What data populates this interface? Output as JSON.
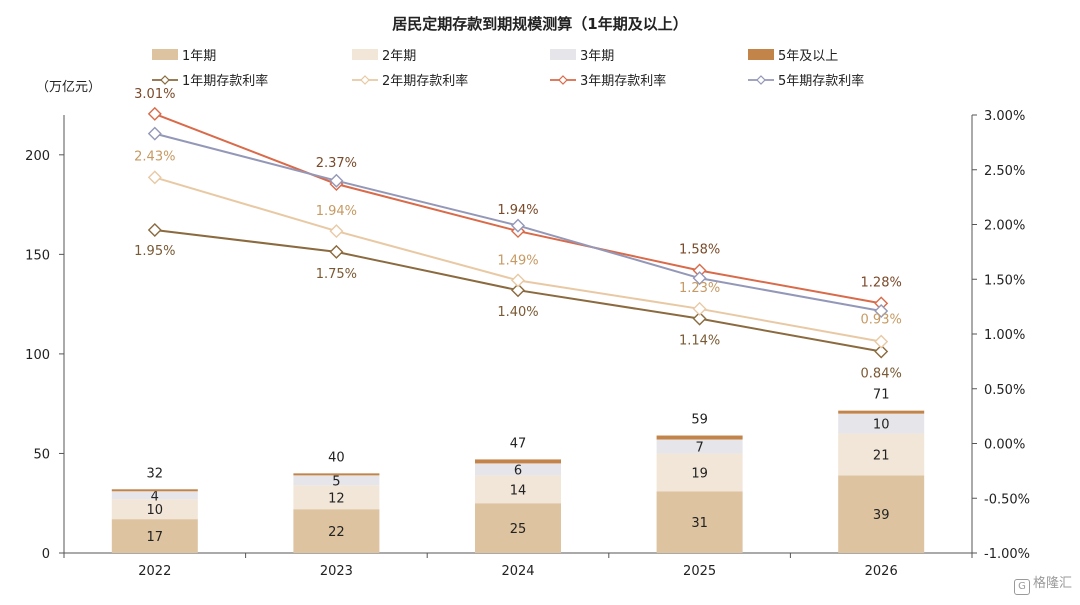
{
  "chart_data": {
    "type": "bar",
    "title": "居民定期存款到期规模测算（1年期及以上）",
    "y_unit_label": "（万亿元）",
    "categories": [
      "2022",
      "2023",
      "2024",
      "2025",
      "2026"
    ],
    "left_axis": {
      "ylim": [
        0,
        220
      ],
      "ticks": [
        0,
        50,
        100,
        150,
        200
      ]
    },
    "right_axis": {
      "ylim": [
        -1.0,
        3.0
      ],
      "ticks": [
        "-1.00%",
        "-0.50%",
        "0.00%",
        "0.50%",
        "1.00%",
        "1.50%",
        "2.00%",
        "2.50%",
        "3.00%"
      ]
    },
    "stacked_series": [
      {
        "name": "1年期",
        "color": "#ddc3a0",
        "values": [
          17,
          22,
          25,
          31,
          39
        ],
        "labels": [
          "17",
          "22",
          "25",
          "31",
          "39"
        ]
      },
      {
        "name": "2年期",
        "color": "#f2e6d8",
        "values": [
          10,
          12,
          14,
          19,
          21
        ],
        "labels": [
          "10",
          "12",
          "14",
          "19",
          "21"
        ]
      },
      {
        "name": "3年期",
        "color": "#e6e6ea",
        "values": [
          4,
          5,
          6,
          7,
          10
        ],
        "labels": [
          "4",
          "5",
          "6",
          "7",
          "10"
        ]
      },
      {
        "name": "5年及以上",
        "color": "#c3844a",
        "values": [
          1,
          1,
          2,
          2,
          1.5
        ],
        "labels": []
      }
    ],
    "totals": [
      "32",
      "40",
      "47",
      "59",
      "71"
    ],
    "line_series": [
      {
        "name": "1年期存款利率",
        "color": "#8a6a3e",
        "values": [
          1.95,
          1.75,
          1.4,
          1.14,
          0.84
        ],
        "labels": [
          "1.95%",
          "1.75%",
          "1.40%",
          "1.14%",
          "0.84%"
        ]
      },
      {
        "name": "2年期存款利率",
        "color": "#e8c9a4",
        "values": [
          2.43,
          1.94,
          1.49,
          1.23,
          0.93
        ],
        "labels": [
          "2.43%",
          "1.94%",
          "1.49%",
          "1.23%",
          "0.93%"
        ]
      },
      {
        "name": "3年期存款利率",
        "color": "#d96a4a",
        "values": [
          3.01,
          2.37,
          1.94,
          1.58,
          1.28
        ],
        "labels": [
          "3.01%",
          "2.37%",
          "1.94%",
          "1.58%",
          "1.28%"
        ]
      },
      {
        "name": "5年期存款利率",
        "color": "#9498b8",
        "values": [
          2.83,
          2.4,
          1.99,
          1.51,
          1.21
        ],
        "labels": []
      }
    ],
    "legend_position": "top",
    "grid": false
  },
  "watermark": {
    "text": "格隆汇",
    "icon": "G"
  }
}
